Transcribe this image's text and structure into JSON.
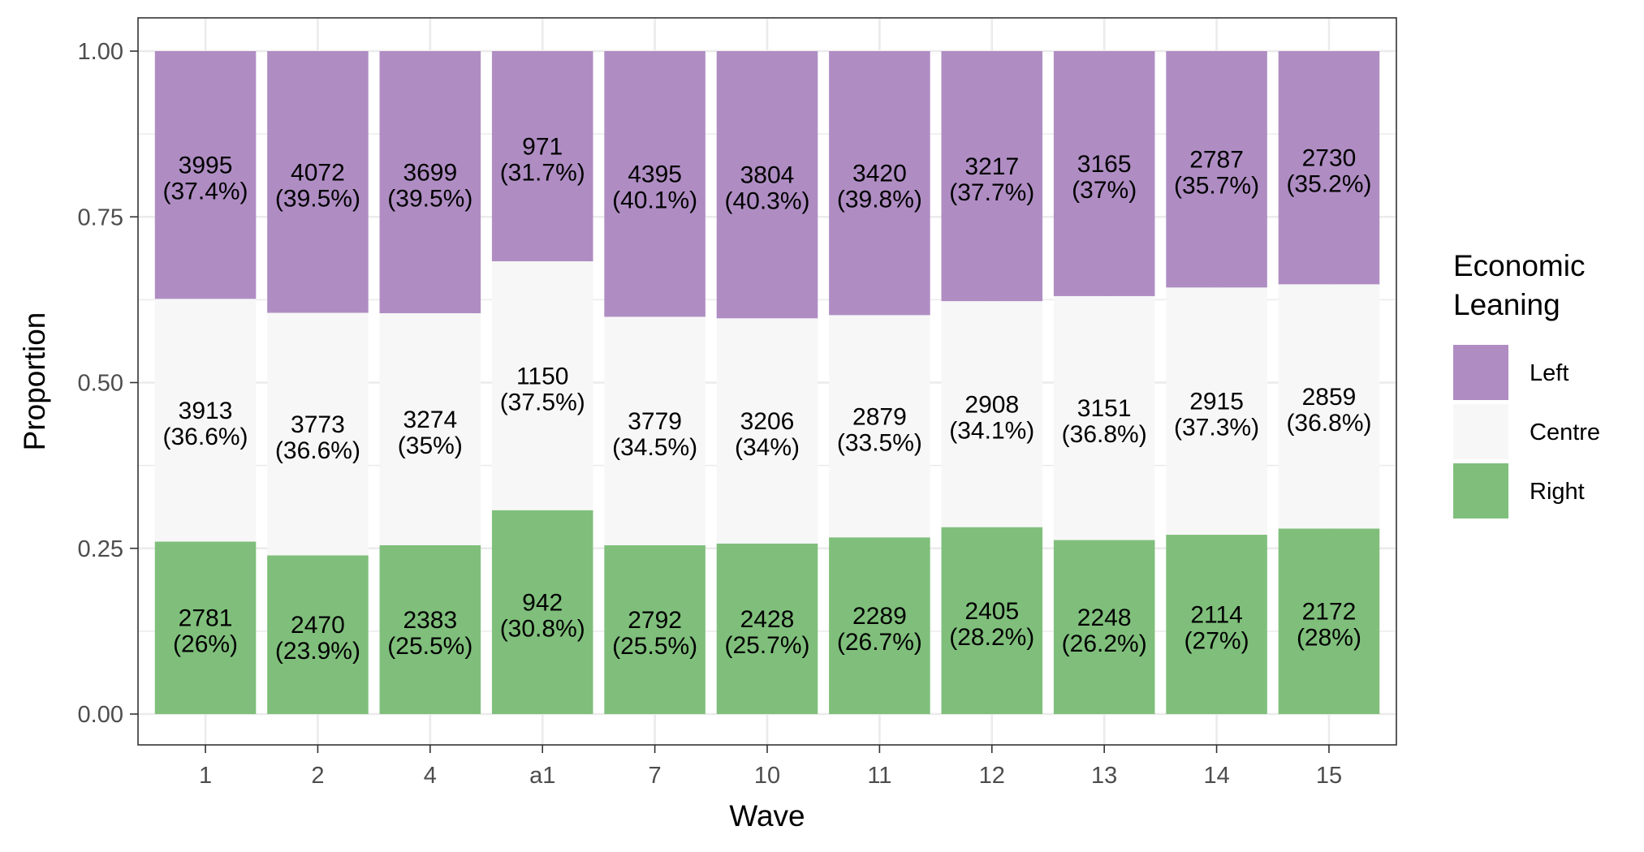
{
  "chart_data": {
    "type": "bar",
    "stacked": true,
    "xlabel": "Wave",
    "ylabel": "Proportion",
    "ylim": [
      0,
      1
    ],
    "yticks": [
      "0.00",
      "0.25",
      "0.50",
      "0.75",
      "1.00"
    ],
    "grid": true,
    "legend": {
      "title": "Economic\nLeaning",
      "position": "right"
    },
    "categories": [
      "1",
      "2",
      "4",
      "a1",
      "7",
      "10",
      "11",
      "12",
      "13",
      "14",
      "15"
    ],
    "series": [
      {
        "name": "Left",
        "color": "#af8dc3",
        "counts": [
          3995,
          4072,
          3699,
          971,
          4395,
          3804,
          3420,
          3217,
          3165,
          2787,
          2730
        ],
        "labels": [
          "(37.4%)",
          "(39.5%)",
          "(39.5%)",
          "(31.7%)",
          "(40.1%)",
          "(40.3%)",
          "(39.8%)",
          "(37.7%)",
          "(37%)",
          "(35.7%)",
          "(35.2%)"
        ]
      },
      {
        "name": "Centre",
        "color": "#f7f7f7",
        "counts": [
          3913,
          3773,
          3274,
          1150,
          3779,
          3206,
          2879,
          2908,
          3151,
          2915,
          2859
        ],
        "labels": [
          "(36.6%)",
          "(36.6%)",
          "(35%)",
          "(37.5%)",
          "(34.5%)",
          "(34%)",
          "(33.5%)",
          "(34.1%)",
          "(36.8%)",
          "(37.3%)",
          "(36.8%)"
        ]
      },
      {
        "name": "Right",
        "color": "#7fbf7b",
        "counts": [
          2781,
          2470,
          2383,
          942,
          2792,
          2428,
          2289,
          2405,
          2248,
          2114,
          2172
        ],
        "labels": [
          "(26%)",
          "(23.9%)",
          "(25.5%)",
          "(30.8%)",
          "(25.5%)",
          "(25.7%)",
          "(26.7%)",
          "(28.2%)",
          "(26.2%)",
          "(27%)",
          "(28%)"
        ]
      }
    ]
  }
}
